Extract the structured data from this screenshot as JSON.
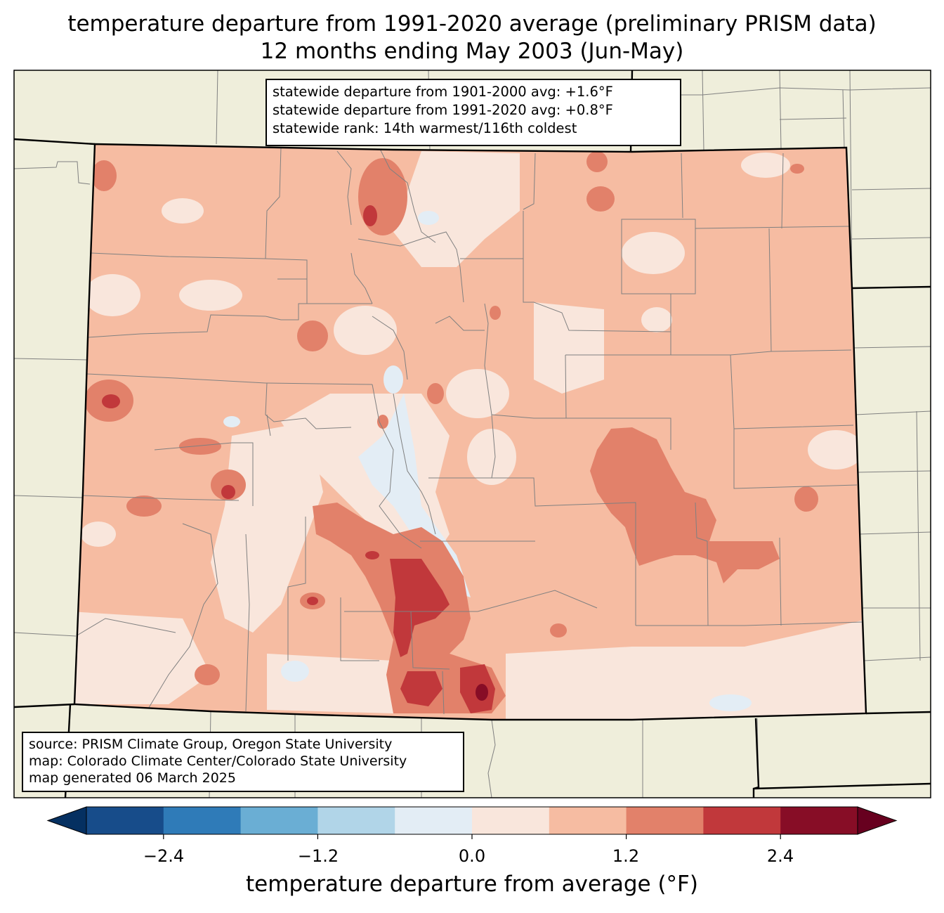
{
  "title": {
    "line1": "temperature departure from 1991-2020 average (preliminary PRISM data)",
    "line2": "12 months ending May 2003 (Jun-May)"
  },
  "stats": {
    "line1": "statewide departure from 1901-2000 avg: +1.6°F",
    "line2": "statewide departure from 1991-2020 avg: +0.8°F",
    "line3": "statewide rank: 14th warmest/116th coldest"
  },
  "source": {
    "line1": "source: PRISM Climate Group, Oregon State University",
    "line2": "map: Colorado Climate Center/Colorado State University",
    "line3": "map generated 06 March 2025"
  },
  "colorbar": {
    "label": "temperature departure from average (°F)",
    "ticks": [
      "−2.4",
      "−1.2",
      "0.0",
      "1.2",
      "2.4"
    ],
    "bins": [
      {
        "from": -3.0,
        "to": -2.4,
        "color": "#174c8a"
      },
      {
        "from": -2.4,
        "to": -1.8,
        "color": "#2f7bb8"
      },
      {
        "from": -1.8,
        "to": -1.2,
        "color": "#6aaed4"
      },
      {
        "from": -1.2,
        "to": -0.6,
        "color": "#b1d5e8"
      },
      {
        "from": -0.6,
        "to": 0.0,
        "color": "#e3edf5"
      },
      {
        "from": 0.0,
        "to": 0.6,
        "color": "#f9e6dc"
      },
      {
        "from": 0.6,
        "to": 1.2,
        "color": "#f6bca2"
      },
      {
        "from": 1.2,
        "to": 1.8,
        "color": "#e2816a"
      },
      {
        "from": 1.8,
        "to": 2.4,
        "color": "#c1383b"
      },
      {
        "from": 2.4,
        "to": 3.0,
        "color": "#870d26"
      }
    ],
    "under_color": "#053061",
    "over_color": "#67001f"
  },
  "colors": {
    "land": "#efeedb",
    "border": "#000000",
    "county": "#808080",
    "base_fill": "#f6bca2"
  }
}
